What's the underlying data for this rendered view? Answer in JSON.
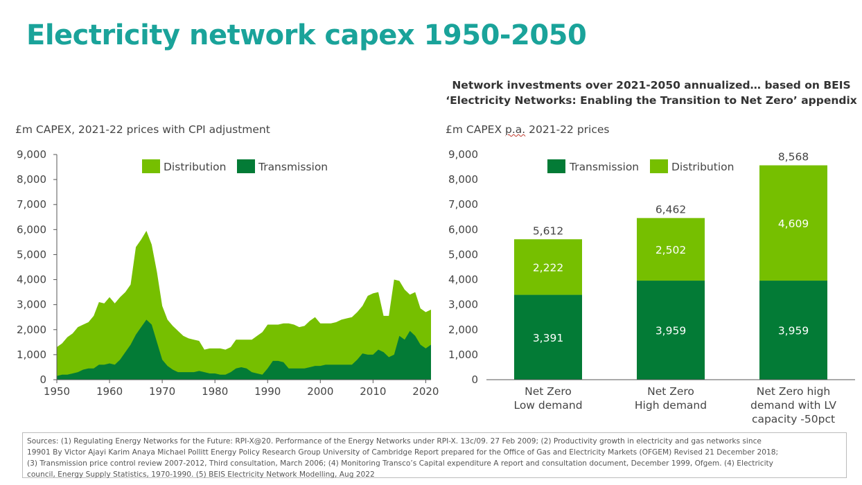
{
  "title": "Electricity network capex 1950-2050",
  "left": {
    "subtitle": "£m CAPEX, 2021-22 prices with CPI adjustment"
  },
  "right": {
    "heading_line1": "Network investments over 2021-2050 annualized… based on BEIS",
    "heading_line2": "‘Electricity Networks: Enabling the Transition to Net Zero’ appendix",
    "subtitle_pre": "£m CAPEX ",
    "subtitle_squiggle": "p.a.",
    "subtitle_post": " 2021-22 prices"
  },
  "colors": {
    "distribution": "#76bf00",
    "transmission": "#037b36",
    "title": "#1aa39a"
  },
  "chart_data": [
    {
      "type": "area",
      "stacked": true,
      "ylim": [
        0,
        9000
      ],
      "yticks": [
        "0",
        "1,000",
        "2,000",
        "3,000",
        "4,000",
        "5,000",
        "6,000",
        "7,000",
        "8,000",
        "9,000"
      ],
      "xticks": [
        "1950",
        "1960",
        "1970",
        "1980",
        "1990",
        "2000",
        "2010",
        "2020"
      ],
      "legend": [
        "Distribution",
        "Transmission"
      ],
      "legend_position": "top",
      "x": [
        1950,
        1951,
        1952,
        1953,
        1954,
        1955,
        1956,
        1957,
        1958,
        1959,
        1960,
        1961,
        1962,
        1963,
        1964,
        1965,
        1966,
        1967,
        1968,
        1969,
        1970,
        1971,
        1972,
        1973,
        1974,
        1975,
        1976,
        1977,
        1978,
        1979,
        1980,
        1981,
        1982,
        1983,
        1984,
        1985,
        1986,
        1987,
        1988,
        1989,
        1990,
        1991,
        1992,
        1993,
        1994,
        1995,
        1996,
        1997,
        1998,
        1999,
        2000,
        2001,
        2002,
        2003,
        2004,
        2005,
        2006,
        2007,
        2008,
        2009,
        2010,
        2011,
        2012,
        2013,
        2014,
        2015,
        2016,
        2017,
        2018,
        2019,
        2020,
        2021
      ],
      "series": [
        {
          "name": "Transmission",
          "values": [
            150,
            200,
            200,
            250,
            300,
            400,
            450,
            450,
            600,
            600,
            650,
            600,
            800,
            1100,
            1400,
            1800,
            2100,
            2400,
            2200,
            1500,
            800,
            550,
            400,
            300,
            300,
            300,
            300,
            350,
            300,
            250,
            250,
            200,
            200,
            300,
            450,
            500,
            450,
            300,
            250,
            200,
            450,
            750,
            750,
            700,
            450,
            450,
            450,
            450,
            500,
            550,
            550,
            600,
            600,
            600,
            600,
            600,
            600,
            800,
            1050,
            1000,
            1000,
            1200,
            1100,
            900,
            1000,
            1750,
            1600,
            1950,
            1750,
            1400,
            1250,
            1400
          ]
        },
        {
          "name": "Distribution",
          "values": [
            1150,
            1250,
            1500,
            1600,
            1800,
            1800,
            1850,
            2100,
            2500,
            2450,
            2650,
            2450,
            2500,
            2400,
            2400,
            3500,
            3500,
            3550,
            3200,
            2800,
            2150,
            1850,
            1750,
            1650,
            1450,
            1350,
            1300,
            1200,
            900,
            1000,
            1000,
            1050,
            1000,
            1000,
            1150,
            1100,
            1150,
            1300,
            1500,
            1700,
            1750,
            1450,
            1450,
            1550,
            1800,
            1750,
            1650,
            1700,
            1850,
            1950,
            1700,
            1650,
            1650,
            1700,
            1800,
            1850,
            1900,
            1900,
            1900,
            2350,
            2450,
            2300,
            1450,
            1650,
            3000,
            2200,
            2000,
            1450,
            1750,
            1450,
            1450,
            1400
          ]
        }
      ]
    },
    {
      "type": "bar",
      "stacked": true,
      "ylim": [
        0,
        9000
      ],
      "yticks": [
        "0",
        "1,000",
        "2,000",
        "3,000",
        "4,000",
        "5,000",
        "6,000",
        "7,000",
        "8,000",
        "9,000"
      ],
      "categories": [
        [
          "Net Zero",
          "Low demand"
        ],
        [
          "Net Zero",
          "High demand"
        ],
        [
          "Net Zero high",
          "demand with LV",
          "capacity -50pct"
        ]
      ],
      "legend": [
        "Transmission",
        "Distribution"
      ],
      "legend_position": "top",
      "series": [
        {
          "name": "Transmission",
          "values": [
            3391,
            3959,
            3959
          ],
          "labels": [
            "3,391",
            "3,959",
            "3,959"
          ]
        },
        {
          "name": "Distribution",
          "values": [
            2222,
            2502,
            4609
          ],
          "labels": [
            "2,222",
            "2,502",
            "4,609"
          ]
        }
      ],
      "totals": [
        5612,
        6462,
        8568
      ],
      "total_labels": [
        "5,612",
        "6,462",
        "8,568"
      ]
    }
  ],
  "sources": {
    "line1": "Sources: (1) Regulating Energy Networks for the Future: RPI-X@20. Performance of the Energy Networks under RPI-X. 13c/09. 27 Feb 2009; (2) Productivity growth in electricity and gas networks since",
    "line2": "19901 By Victor Ajayi Karim Anaya Michael Pollitt Energy Policy Research Group University of Cambridge Report prepared for the Office of Gas and Electricity Markets (OFGEM) Revised 21 December 2018;",
    "line3": "(3) Transmission price control review 2007-2012, Third consultation, March 2006; (4) Monitoring Transco’s Capital expenditure A report and consultation document, December 1999, Ofgem. (4) Electricity",
    "line4": "council, Energy Supply Statistics, 1970-1990. (5) BEIS Electricity Network Modelling, Aug 2022"
  }
}
